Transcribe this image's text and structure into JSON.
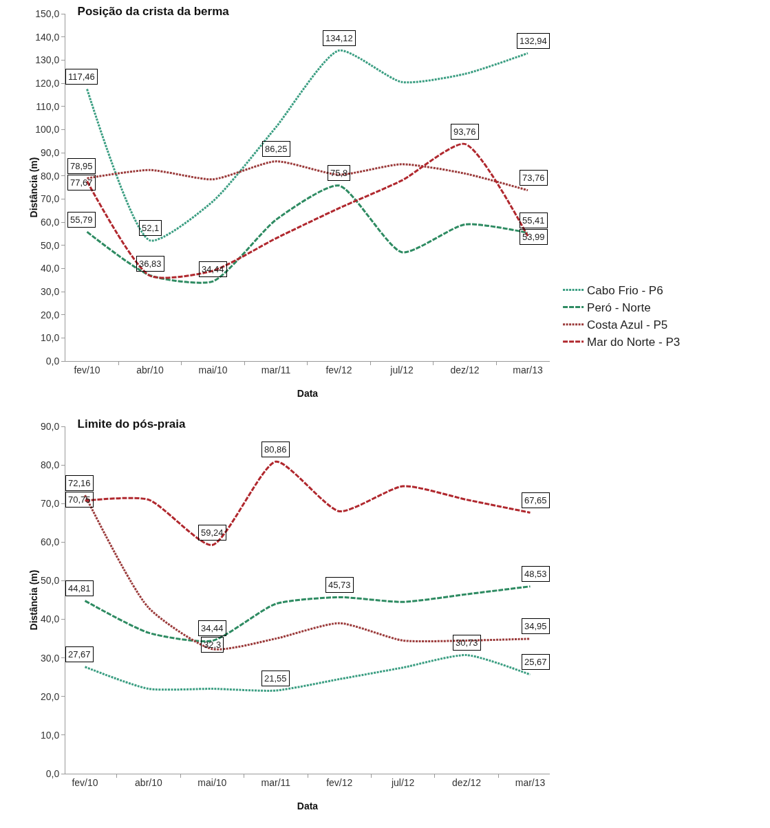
{
  "chart_data": [
    {
      "type": "line",
      "title": "Posição da crista da berma",
      "xlabel": "Data",
      "ylabel": "Distância (m)",
      "categories": [
        "fev/10",
        "abr/10",
        "mai/10",
        "mar/11",
        "fev/12",
        "jul/12",
        "dez/12",
        "mar/13"
      ],
      "series": [
        {
          "name": "Cabo Frio - P6",
          "color": "#3b9e82",
          "line_style": "dotted",
          "values": [
            117.46,
            52.1,
            69,
            101,
            134.12,
            120.5,
            124,
            132.94
          ],
          "value_labels": [
            "117,46",
            "52,1",
            null,
            null,
            "134,12",
            null,
            null,
            "132,94"
          ]
        },
        {
          "name": "Peró - Norte",
          "color": "#2e8b62",
          "line_style": "dashed",
          "values": [
            55.79,
            37,
            34.44,
            61,
            75.8,
            47,
            59,
            55.41
          ],
          "value_labels": [
            "55,79",
            null,
            "34,44",
            null,
            "75,8",
            null,
            null,
            "55,41"
          ]
        },
        {
          "name": "Costa Azul - P5",
          "color": "#9b3b3b",
          "line_style": "dotted",
          "values": [
            78.95,
            82.5,
            78.5,
            86.25,
            80.5,
            85,
            81,
            73.76
          ],
          "value_labels": [
            "78,95",
            null,
            null,
            "86,25",
            null,
            null,
            null,
            "73,76"
          ]
        },
        {
          "name": "Mar do Norte - P3",
          "color": "#b0282e",
          "line_style": "dashed",
          "values": [
            77.67,
            36.83,
            39,
            53,
            66,
            78,
            93.76,
            53.99
          ],
          "value_labels": [
            "77,67",
            "36,83",
            null,
            null,
            null,
            null,
            "93,76",
            "53,99"
          ]
        }
      ],
      "ylim": [
        0,
        150
      ],
      "yticks": [
        {
          "value": 0,
          "label": "0,0"
        },
        {
          "value": 10,
          "label": "10,0"
        },
        {
          "value": 20,
          "label": "20,0"
        },
        {
          "value": 30,
          "label": "30,0"
        },
        {
          "value": 40,
          "label": "40,0"
        },
        {
          "value": 50,
          "label": "50,0"
        },
        {
          "value": 60,
          "label": "60,0"
        },
        {
          "value": 70,
          "label": "70,0"
        },
        {
          "value": 80,
          "label": "80,0"
        },
        {
          "value": 90,
          "label": "90,0"
        },
        {
          "value": 100,
          "label": "100,0"
        },
        {
          "value": 110,
          "label": "110,0"
        },
        {
          "value": 120,
          "label": "120,0"
        },
        {
          "value": 130,
          "label": "130,0"
        },
        {
          "value": 140,
          "label": "140,0"
        },
        {
          "value": 150,
          "label": "150,0"
        }
      ],
      "legend": "right"
    },
    {
      "type": "line",
      "title": "Limite do pós-praia",
      "xlabel": "Data",
      "ylabel": "Distância (m)",
      "categories": [
        "fev/10",
        "abr/10",
        "mai/10",
        "mar/11",
        "fev/12",
        "jul/12",
        "dez/12",
        "mar/13"
      ],
      "series": [
        {
          "color": "#3b9e82",
          "line_style": "dotted",
          "values": [
            27.67,
            22,
            22,
            21.55,
            24.5,
            27.5,
            30.73,
            25.67
          ],
          "value_labels": [
            "27,67",
            null,
            null,
            "21,55",
            null,
            null,
            "30,73",
            "25,67"
          ]
        },
        {
          "color": "#2e8b62",
          "line_style": "dashed",
          "values": [
            44.81,
            36.5,
            34.44,
            44,
            45.73,
            44.5,
            46.5,
            48.53
          ],
          "value_labels": [
            "44,81",
            null,
            "34,44",
            null,
            "45,73",
            null,
            null,
            "48,53"
          ]
        },
        {
          "color": "#9b3b3b",
          "line_style": "dotted",
          "values": [
            72.16,
            43,
            32.3,
            35,
            39,
            34.5,
            34.5,
            34.95
          ],
          "value_labels": [
            "72,16",
            null,
            "32,3",
            null,
            null,
            null,
            null,
            "34,95"
          ]
        },
        {
          "color": "#b0282e",
          "line_style": "dashed",
          "values": [
            70.75,
            71,
            59.24,
            80.86,
            68,
            74.5,
            71,
            67.65
          ],
          "value_labels": [
            "70,75",
            null,
            "59,24",
            "80,86",
            null,
            null,
            null,
            "67,65"
          ]
        }
      ],
      "ylim": [
        0,
        90
      ],
      "yticks": [
        {
          "value": 0,
          "label": "0,0"
        },
        {
          "value": 10,
          "label": "10,0"
        },
        {
          "value": 20,
          "label": "20,0"
        },
        {
          "value": 30,
          "label": "30,0"
        },
        {
          "value": 40,
          "label": "40,0"
        },
        {
          "value": 50,
          "label": "50,0"
        },
        {
          "value": 60,
          "label": "60,0"
        },
        {
          "value": 70,
          "label": "70,0"
        },
        {
          "value": 80,
          "label": "80,0"
        },
        {
          "value": 90,
          "label": "90,0"
        }
      ]
    }
  ]
}
